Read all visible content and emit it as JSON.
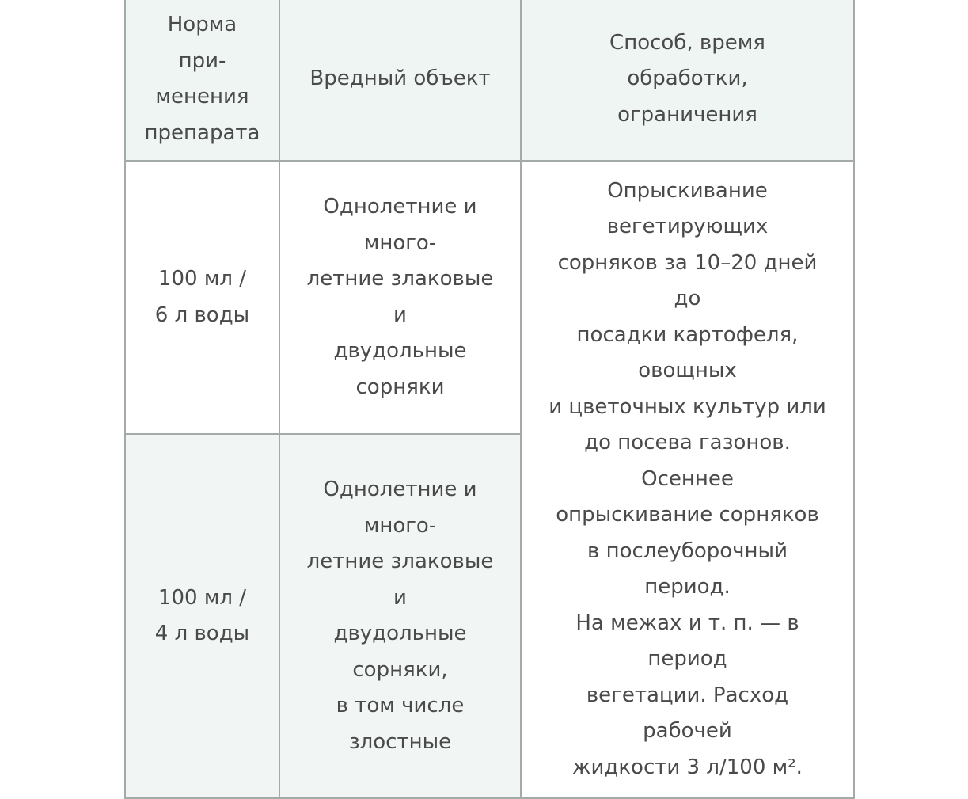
{
  "table": {
    "headers": [
      "Норма\nпри-\nменения\nпрепарата",
      "Вредный объект",
      "Способ, время\nобработки,\nограничения"
    ],
    "rows": [
      {
        "rate": "100 мл /\n6 л воды",
        "target": "Однолетние и\nмного-\nлетние злаковые\nи\nдвудольные\nсорняки"
      },
      {
        "rate": "100 мл /\n4 л воды",
        "target": "Однолетние и\nмного-\nлетние злаковые\nи\nдвудольные\nсорняки,\nв том числе\nзлостные"
      }
    ],
    "method": "Опрыскивание\nвегетирующих\nсорняков за 10–20 дней\nдо\nпосадки картофеля,\nовощных\nи цветочных культур или\nдо посева газонов.\nОсеннее\nопрыскивание сорняков\nв послеуборочный\nпериод.\nНа межах и т. п. — в\nпериод\nвегетации. Расход\nрабочей\nжидкости 3 л/100 м²."
  }
}
